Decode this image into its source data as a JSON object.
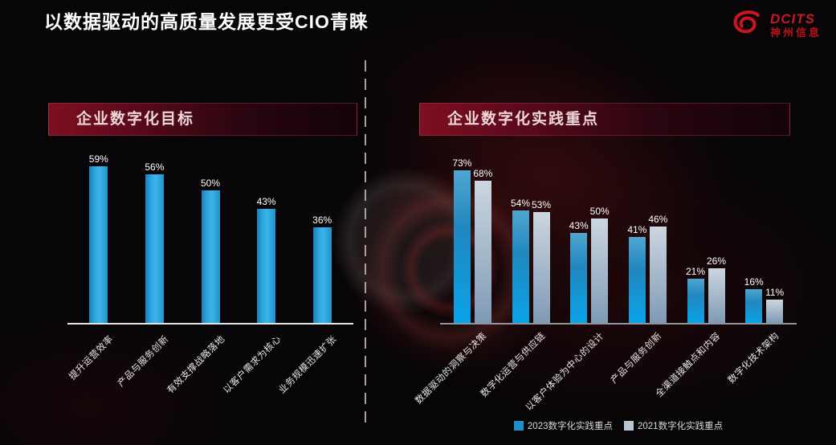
{
  "slide": {
    "title": "以数据驱动的高质量发展更受CIO青睐",
    "logo": {
      "brand": "DCITS",
      "company": "神州信息"
    }
  },
  "left_panel": {
    "header": "企业数字化目标"
  },
  "right_panel": {
    "header": "企业数字化实践重点"
  },
  "legend": [
    {
      "label": "2023数字化实践重点",
      "color": "#1e8fc8"
    },
    {
      "label": "2021数字化实践重点",
      "color": "#b9c6d2"
    }
  ],
  "colors": {
    "bar_blue": "#0aa3e8",
    "bar_gray": "#a9bccd",
    "banner_red": "#7e0f22",
    "logo_red": "#c8151e",
    "background": "#070507"
  },
  "chart_data": [
    {
      "type": "bar",
      "title": "企业数字化目标",
      "categories": [
        "提升运营效率",
        "产品与服务创新",
        "有效支撑战略落地",
        "以客户需求为核心",
        "业务规模迅速扩张"
      ],
      "values": [
        59,
        56,
        50,
        43,
        36
      ],
      "value_format": "percent",
      "xlabel": "",
      "ylabel": "",
      "ylim": [
        0,
        65
      ],
      "grid": false,
      "data_labels": true,
      "legend_position": "none"
    },
    {
      "type": "bar",
      "title": "企业数字化实践重点",
      "categories": [
        "数据驱动的洞察与决策",
        "数字化运营与供应链",
        "以客户体验为中心的设计",
        "产品与服务创新",
        "全渠道接触点和内容",
        "数字化技术架构"
      ],
      "series": [
        {
          "name": "2023数字化实践重点",
          "values": [
            73,
            54,
            43,
            41,
            21,
            16
          ]
        },
        {
          "name": "2021数字化实践重点",
          "values": [
            68,
            53,
            50,
            46,
            26,
            11
          ]
        }
      ],
      "value_format": "percent",
      "xlabel": "",
      "ylabel": "",
      "ylim": [
        0,
        80
      ],
      "grid": false,
      "data_labels": true,
      "legend_position": "bottom"
    }
  ]
}
